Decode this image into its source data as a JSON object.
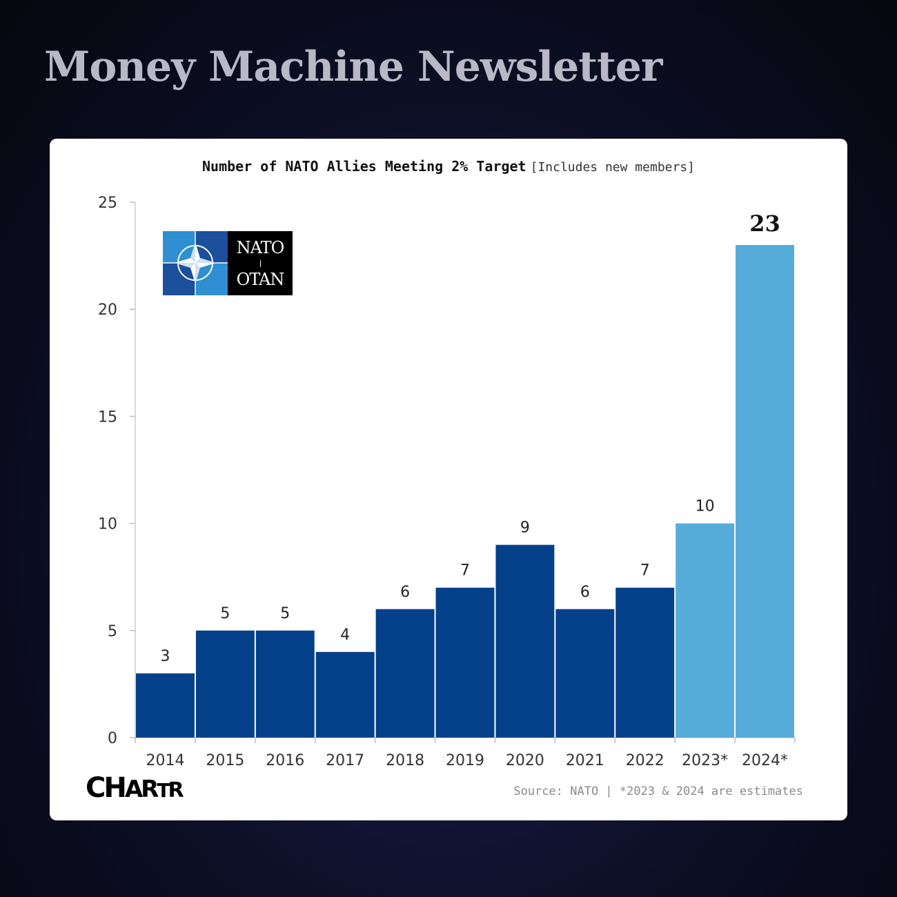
{
  "header": {
    "title": "Money Machine Newsletter"
  },
  "logos": {
    "nato_line1": "NATO",
    "nato_line2": "OTAN",
    "chartr_big1": "CH",
    "chartr_mid": "AR",
    "chartr_small": "T",
    "chartr_big2": "R"
  },
  "colors": {
    "actual_bar": "#05418a",
    "estimate_bar": "#55acd9",
    "nato_light_blue": "#2f8fd2",
    "nato_dark_blue": "#1c4f9c"
  },
  "chart_data": {
    "type": "bar",
    "title": "Number of NATO Allies Meeting 2% Target",
    "subtitle": "[Includes new members]",
    "xlabel": "",
    "ylabel": "",
    "categories": [
      "2014",
      "2015",
      "2016",
      "2017",
      "2018",
      "2019",
      "2020",
      "2021",
      "2022",
      "2023*",
      "2024*"
    ],
    "values": [
      3,
      5,
      5,
      4,
      6,
      7,
      9,
      6,
      7,
      10,
      23
    ],
    "estimate": [
      false,
      false,
      false,
      false,
      false,
      false,
      false,
      false,
      false,
      true,
      true
    ],
    "ylim": [
      0,
      25
    ],
    "yticks": [
      0,
      5,
      10,
      15,
      20,
      25
    ],
    "grid": false,
    "legend": "none"
  },
  "footer": {
    "source": "Source: NATO | *2023 & 2024 are estimates"
  }
}
